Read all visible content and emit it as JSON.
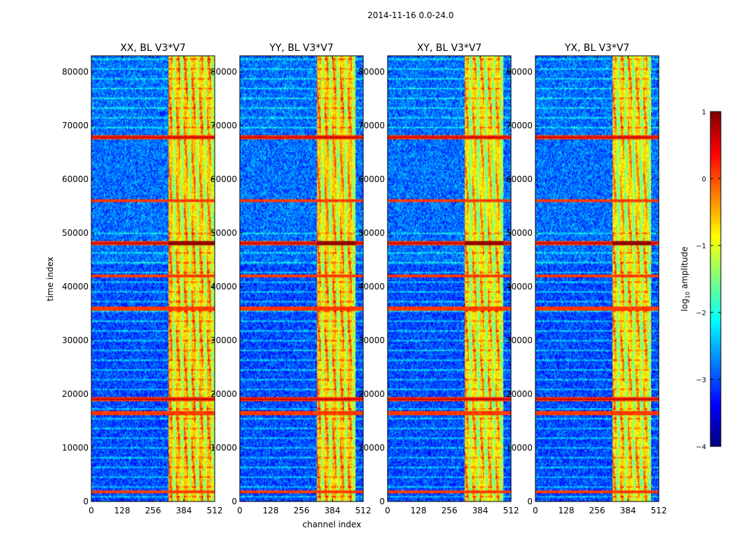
{
  "figure": {
    "suptitle": "2014-11-16 0.0-24.0",
    "xlabel": "channel index",
    "ylabel": "time index"
  },
  "colorbar": {
    "label_prefix": "log",
    "label_sub": "10",
    "label_suffix": " amplitude",
    "range": [
      -4,
      1
    ],
    "ticks": [
      1,
      0,
      -1,
      -2,
      -3,
      -4
    ],
    "tick_labels": [
      "1",
      "0",
      "−1",
      "−2",
      "−3",
      "−4"
    ],
    "colormap": "jet",
    "colors": [
      "#00007f",
      "#0000ff",
      "#007fff",
      "#00ffff",
      "#7fff7f",
      "#ffff00",
      "#ff7f00",
      "#ff0000",
      "#7f0000"
    ]
  },
  "chart_data": [
    {
      "type": "heatmap",
      "title": "XX, BL V3*V7",
      "xlabel": "channel index",
      "ylabel": "time index",
      "xlim": [
        0,
        512
      ],
      "ylim": [
        0,
        83000
      ],
      "xticks": [
        0,
        128,
        256,
        384,
        512
      ],
      "yticks": [
        0,
        10000,
        20000,
        30000,
        40000,
        50000,
        60000,
        70000,
        80000
      ],
      "background_log_amplitude": -3.0,
      "bright_band_channels": [
        320,
        512
      ],
      "bright_band_log_amplitude": -0.8,
      "rfi_time_indices": [
        1800,
        16500,
        19000,
        36000,
        42000,
        48200,
        56000,
        67800
      ],
      "seed": 11
    },
    {
      "type": "heatmap",
      "title": "YY, BL V3*V7",
      "xlabel": "channel index",
      "ylabel": "time index",
      "xlim": [
        0,
        512
      ],
      "ylim": [
        0,
        83000
      ],
      "xticks": [
        0,
        128,
        256,
        384,
        512
      ],
      "yticks": [
        0,
        10000,
        20000,
        30000,
        40000,
        50000,
        60000,
        70000,
        80000
      ],
      "background_log_amplitude": -3.0,
      "bright_band_channels": [
        320,
        480
      ],
      "bright_band_log_amplitude": -0.8,
      "rfi_time_indices": [
        1800,
        16500,
        19000,
        36000,
        42000,
        48200,
        56000,
        67800
      ],
      "seed": 23
    },
    {
      "type": "heatmap",
      "title": "XY, BL V3*V7",
      "xlabel": "channel index",
      "ylabel": "time index",
      "xlim": [
        0,
        512
      ],
      "ylim": [
        0,
        83000
      ],
      "xticks": [
        0,
        128,
        256,
        384,
        512
      ],
      "yticks": [
        0,
        10000,
        20000,
        30000,
        40000,
        50000,
        60000,
        70000,
        80000
      ],
      "background_log_amplitude": -3.0,
      "bright_band_channels": [
        320,
        480
      ],
      "bright_band_log_amplitude": -0.9,
      "rfi_time_indices": [
        1800,
        16500,
        19000,
        36000,
        42000,
        48200,
        56000,
        67800
      ],
      "seed": 37
    },
    {
      "type": "heatmap",
      "title": "YX, BL V3*V7",
      "xlabel": "channel index",
      "ylabel": "time index",
      "xlim": [
        0,
        512
      ],
      "ylim": [
        0,
        83000
      ],
      "xticks": [
        0,
        128,
        256,
        384,
        512
      ],
      "yticks": [
        0,
        10000,
        20000,
        30000,
        40000,
        50000,
        60000,
        70000,
        80000
      ],
      "background_log_amplitude": -3.0,
      "bright_band_channels": [
        320,
        480
      ],
      "bright_band_log_amplitude": -0.9,
      "rfi_time_indices": [
        1800,
        16500,
        19000,
        36000,
        42000,
        48200,
        56000,
        67800
      ],
      "seed": 53
    }
  ]
}
